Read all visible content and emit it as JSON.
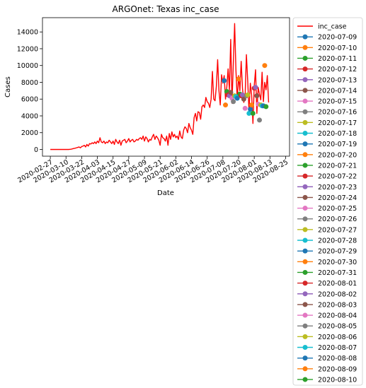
{
  "chart_data": {
    "type": "line",
    "title": "ARGOnet: Texas inc_case",
    "xlabel": "Date",
    "ylabel": "Cases",
    "x_start": "2020-02-27",
    "x_end": "2020-08-22",
    "xlim": [
      "2020-02-21",
      "2020-08-28"
    ],
    "ylim": [
      -800,
      15700
    ],
    "grid": false,
    "legend_position": "outside-right",
    "x_tick_labels": [
      "2020-02-27",
      "2020-03-10",
      "2020-03-22",
      "2020-04-03",
      "2020-04-15",
      "2020-04-27",
      "2020-05-09",
      "2020-05-21",
      "2020-06-02",
      "2020-06-14",
      "2020-06-26",
      "2020-07-08",
      "2020-07-20",
      "2020-08-01",
      "2020-08-13",
      "2020-08-25"
    ],
    "y_ticks": [
      0,
      2000,
      4000,
      6000,
      8000,
      10000,
      12000,
      14000
    ],
    "series": [
      {
        "name": "inc_case",
        "color": "#ff0000",
        "style": "line",
        "values": [
          0,
          0,
          0,
          0,
          0,
          0,
          0,
          0,
          0,
          0,
          0,
          0,
          0,
          0,
          0,
          20,
          40,
          80,
          120,
          150,
          200,
          250,
          300,
          200,
          350,
          400,
          500,
          300,
          600,
          400,
          700,
          650,
          800,
          700,
          900,
          700,
          1000,
          800,
          1400,
          900,
          800,
          1000,
          700,
          900,
          800,
          1100,
          900,
          700,
          1000,
          600,
          1200,
          900,
          700,
          1100,
          500,
          1000,
          1100,
          1200,
          800,
          1000,
          1300,
          900,
          1100,
          1200,
          900,
          1000,
          1200,
          1100,
          1300,
          1400,
          1200,
          1600,
          1000,
          1500,
          1300,
          900,
          1200,
          1100,
          1500,
          1800,
          1200,
          1600,
          1400,
          1100,
          500,
          1800,
          1400,
          1300,
          1000,
          1600,
          500,
          1900,
          1200,
          2100,
          1500,
          1800,
          1400,
          1600,
          1200,
          2200,
          1500,
          1300,
          2300,
          2700,
          2500,
          2000,
          3100,
          2600,
          2300,
          1800,
          3800,
          4300,
          3400,
          4500,
          4400,
          3600,
          5100,
          5300,
          5000,
          6200,
          5700,
          5500,
          5000,
          6000,
          9300,
          6000,
          5800,
          7500,
          10700,
          7000,
          5300,
          8900,
          7900,
          8800,
          6000,
          7400,
          9600,
          7100,
          13100,
          5500,
          10300,
          15000,
          9400,
          5900,
          8800,
          7000,
          10500,
          7300,
          5600,
          6300,
          11300,
          8200,
          4500,
          7900,
          6500,
          3100,
          7600,
          9500,
          4300,
          7400,
          6600,
          5900,
          9200,
          5700,
          8000,
          7100,
          8800,
          5600
        ]
      }
    ],
    "forecasts": [
      {
        "name": "2020-07-09",
        "color": "#1f77b4",
        "points": [
          [
            "2020-07-09",
            8200
          ]
        ]
      },
      {
        "name": "2020-07-10",
        "color": "#ff7f0e",
        "points": [
          [
            "2020-07-10",
            5300
          ]
        ]
      },
      {
        "name": "2020-07-11",
        "color": "#2ca02c",
        "points": [
          [
            "2020-07-11",
            6900
          ]
        ]
      },
      {
        "name": "2020-07-12",
        "color": "#d62728",
        "points": [
          [
            "2020-07-12",
            6500
          ]
        ]
      },
      {
        "name": "2020-07-13",
        "color": "#9467bd",
        "points": [
          [
            "2020-07-13",
            6400
          ]
        ]
      },
      {
        "name": "2020-07-14",
        "color": "#8c564b",
        "points": [
          [
            "2020-07-14",
            6800
          ]
        ]
      },
      {
        "name": "2020-07-15",
        "color": "#e377c2",
        "points": [
          [
            "2020-07-15",
            6100
          ]
        ]
      },
      {
        "name": "2020-07-16",
        "color": "#7f7f7f",
        "points": [
          [
            "2020-07-16",
            5700
          ]
        ]
      },
      {
        "name": "2020-07-17",
        "color": "#bcbd22",
        "points": [
          [
            "2020-07-17",
            6400
          ]
        ]
      },
      {
        "name": "2020-07-18",
        "color": "#17becf",
        "points": [
          [
            "2020-07-18",
            6300
          ]
        ]
      },
      {
        "name": "2020-07-19",
        "color": "#1f77b4",
        "points": [
          [
            "2020-07-19",
            6100
          ]
        ]
      },
      {
        "name": "2020-07-20",
        "color": "#ff7f0e",
        "points": [
          [
            "2020-07-20",
            8400
          ]
        ]
      },
      {
        "name": "2020-07-21",
        "color": "#2ca02c",
        "points": [
          [
            "2020-07-21",
            6600
          ]
        ]
      },
      {
        "name": "2020-07-22",
        "color": "#d62728",
        "points": [
          [
            "2020-07-22",
            6400
          ]
        ]
      },
      {
        "name": "2020-07-23",
        "color": "#9467bd",
        "points": [
          [
            "2020-07-23",
            6500
          ]
        ]
      },
      {
        "name": "2020-07-24",
        "color": "#8c564b",
        "points": [
          [
            "2020-07-24",
            6000
          ]
        ]
      },
      {
        "name": "2020-07-25",
        "color": "#e377c2",
        "points": [
          [
            "2020-07-25",
            4900
          ]
        ]
      },
      {
        "name": "2020-07-26",
        "color": "#7f7f7f",
        "points": [
          [
            "2020-07-26",
            6400
          ]
        ]
      },
      {
        "name": "2020-07-27",
        "color": "#bcbd22",
        "points": [
          [
            "2020-07-27",
            6500
          ]
        ]
      },
      {
        "name": "2020-07-28",
        "color": "#17becf",
        "points": [
          [
            "2020-07-28",
            4300
          ]
        ]
      },
      {
        "name": "2020-07-29",
        "color": "#1f77b4",
        "points": [
          [
            "2020-07-29",
            4800
          ]
        ]
      },
      {
        "name": "2020-07-30",
        "color": "#ff7f0e",
        "points": [
          [
            "2020-07-30",
            5300
          ]
        ]
      },
      {
        "name": "2020-07-31",
        "color": "#2ca02c",
        "points": [
          [
            "2020-07-31",
            4300
          ]
        ]
      },
      {
        "name": "2020-08-01",
        "color": "#d62728",
        "points": [
          [
            "2020-08-01",
            7300
          ]
        ]
      },
      {
        "name": "2020-08-02",
        "color": "#9467bd",
        "points": [
          [
            "2020-08-02",
            7400
          ]
        ]
      },
      {
        "name": "2020-08-03",
        "color": "#8c564b",
        "points": [
          [
            "2020-08-03",
            6400
          ]
        ]
      },
      {
        "name": "2020-08-04",
        "color": "#e377c2",
        "points": [
          [
            "2020-08-04",
            5400
          ]
        ]
      },
      {
        "name": "2020-08-05",
        "color": "#7f7f7f",
        "points": [
          [
            "2020-08-05",
            3500
          ]
        ]
      },
      {
        "name": "2020-08-06",
        "color": "#bcbd22",
        "points": [
          [
            "2020-08-06",
            5300
          ]
        ]
      },
      {
        "name": "2020-08-07",
        "color": "#17becf",
        "points": [
          [
            "2020-08-07",
            5200
          ]
        ]
      },
      {
        "name": "2020-08-08",
        "color": "#1f77b4",
        "points": [
          [
            "2020-08-08",
            5200
          ]
        ]
      },
      {
        "name": "2020-08-09",
        "color": "#ff7f0e",
        "points": [
          [
            "2020-08-09",
            10000
          ]
        ]
      },
      {
        "name": "2020-08-10",
        "color": "#2ca02c",
        "points": [
          [
            "2020-08-10",
            5100
          ]
        ]
      }
    ]
  }
}
